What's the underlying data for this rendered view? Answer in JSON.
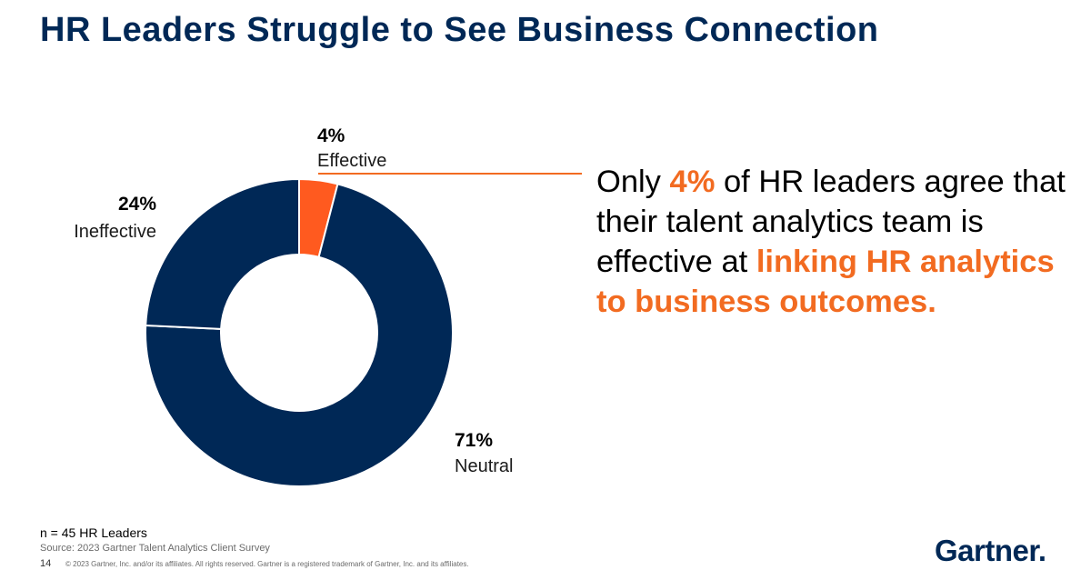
{
  "header": {
    "title": "HR Leaders Struggle to See Business Connection"
  },
  "chart_data": {
    "type": "pie",
    "style": "donut",
    "categories": [
      "Effective",
      "Neutral",
      "Ineffective"
    ],
    "values": [
      4,
      71,
      24
    ],
    "value_labels": [
      "4%",
      "71%",
      "24%"
    ],
    "colors": [
      "#FF5A1F",
      "#002856",
      "#002856"
    ]
  },
  "callout": {
    "part1": "Only ",
    "highlight1": "4%",
    "part2": " of HR leaders agree that their talent analytics team is effective at ",
    "highlight2": "linking HR analytics to business outcomes."
  },
  "footer": {
    "sample": "n = 45 HR Leaders",
    "source": "Source: 2023 Gartner Talent Analytics Client Survey",
    "page_number": "14",
    "copyright": "© 2023 Gartner, Inc. and/or its affiliates. All rights reserved. Gartner is a registered trademark of Gartner, Inc. and its affiliates.",
    "logo_text": "Gartner."
  },
  "colors": {
    "title": "#002856",
    "accent": "#F26B21",
    "donut_dark": "#002856",
    "donut_highlight": "#FF5A1F"
  }
}
